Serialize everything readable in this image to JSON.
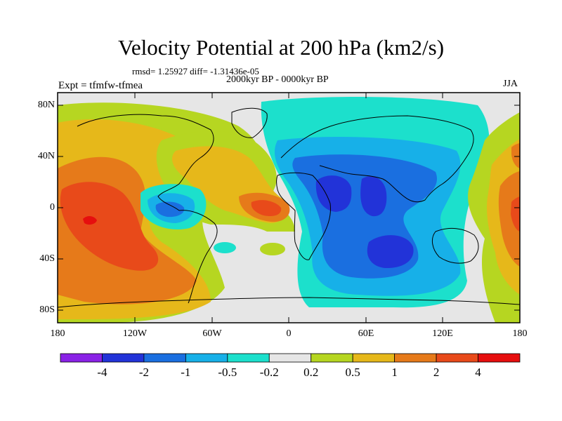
{
  "title": "Velocity Potential at 200 hPa (km2/s)",
  "stats_text": "rmsd= 1.25927 diff= -1.31436e-05",
  "period": "2000kyr BP - 0000kyr BP",
  "experiment": "Expt = tfmfw-tfmea",
  "season": "JJA",
  "lat_labels": [
    "80N",
    "40N",
    "0",
    "40S",
    "80S"
  ],
  "lon_labels": [
    "180",
    "120W",
    "60W",
    "0",
    "60E",
    "120E",
    "180"
  ],
  "colorbar": {
    "labels": [
      "-4",
      "-2",
      "-1",
      "-0.5",
      "-0.2",
      "0.2",
      "0.5",
      "1",
      "2",
      "4"
    ],
    "colors": [
      "#8a22e6",
      "#2233d8",
      "#1a6fe0",
      "#17b0e8",
      "#1ce0cc",
      "#e6e6e6",
      "#b6d621",
      "#e6b81a",
      "#e67a1a",
      "#e84a1a",
      "#e60e0e"
    ]
  }
}
